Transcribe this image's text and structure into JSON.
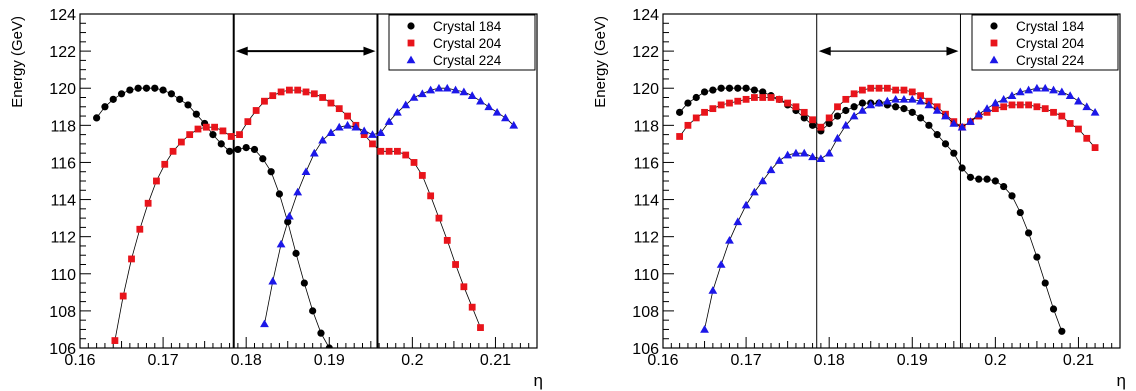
{
  "chart_data": [
    {
      "type": "scatter",
      "title": "",
      "xlabel": "η",
      "ylabel": "Energy (GeV)",
      "xlim": [
        0.16,
        0.215
      ],
      "ylim": [
        106,
        124
      ],
      "xticks": [
        0.16,
        0.17,
        0.18,
        0.19,
        0.2,
        0.21
      ],
      "xtick_labels": [
        "0.16",
        "0.17",
        "0.18",
        "0.19",
        "0.2",
        "0.21"
      ],
      "yticks": [
        106,
        108,
        110,
        112,
        114,
        116,
        118,
        120,
        122,
        124
      ],
      "ytick_labels": [
        "106",
        "108",
        "110",
        "112",
        "114",
        "116",
        "118",
        "120",
        "122",
        "124"
      ],
      "grid": false,
      "legend_position": "top-right",
      "vertical_lines": [
        0.1785,
        0.1958
      ],
      "arrow": {
        "from": 0.1785,
        "to": 0.1958,
        "y": 122
      },
      "series": [
        {
          "name": "Crystal 184",
          "marker": "circle",
          "color": "#000000",
          "x": [
            0.162,
            0.163,
            0.164,
            0.165,
            0.166,
            0.167,
            0.168,
            0.169,
            0.17,
            0.171,
            0.172,
            0.173,
            0.174,
            0.175,
            0.176,
            0.177,
            0.178,
            0.179,
            0.18,
            0.181,
            0.182,
            0.183,
            0.184,
            0.185,
            0.186,
            0.187,
            0.188,
            0.189,
            0.19
          ],
          "y": [
            118.4,
            119.0,
            119.4,
            119.7,
            119.9,
            120.0,
            120.0,
            120.0,
            119.9,
            119.7,
            119.4,
            119.1,
            118.6,
            118.1,
            117.5,
            117.0,
            116.6,
            116.7,
            116.8,
            116.7,
            116.2,
            115.5,
            114.3,
            112.8,
            111.1,
            109.5,
            108.0,
            106.8,
            106.0
          ]
        },
        {
          "name": "Crystal 204",
          "marker": "square",
          "color": "#e8141b",
          "x": [
            0.1642,
            0.1652,
            0.1662,
            0.1672,
            0.1682,
            0.1692,
            0.1702,
            0.1712,
            0.1722,
            0.1732,
            0.1742,
            0.1752,
            0.1762,
            0.1772,
            0.1782,
            0.1792,
            0.1802,
            0.1812,
            0.1822,
            0.1832,
            0.1842,
            0.1852,
            0.1862,
            0.1872,
            0.1882,
            0.1892,
            0.1902,
            0.1912,
            0.1922,
            0.1932,
            0.1942,
            0.1952,
            0.1962,
            0.1972,
            0.1982,
            0.1992,
            0.2002,
            0.2012,
            0.2022,
            0.2032,
            0.2042,
            0.2052,
            0.2062,
            0.2072,
            0.2082
          ],
          "y": [
            106.4,
            108.8,
            110.8,
            112.4,
            113.8,
            115.0,
            115.9,
            116.6,
            117.1,
            117.5,
            117.8,
            117.9,
            117.9,
            117.7,
            117.4,
            117.5,
            118.2,
            118.8,
            119.3,
            119.6,
            119.8,
            119.9,
            119.9,
            119.8,
            119.7,
            119.5,
            119.2,
            118.9,
            118.5,
            118.0,
            117.5,
            117.0,
            116.6,
            116.6,
            116.6,
            116.4,
            116.0,
            115.3,
            114.2,
            113.0,
            111.8,
            110.5,
            109.3,
            108.2,
            107.1
          ]
        },
        {
          "name": "Crystal 224",
          "marker": "triangle",
          "color": "#1c17e8",
          "x": [
            0.1822,
            0.1832,
            0.1842,
            0.1852,
            0.1862,
            0.1872,
            0.1882,
            0.1892,
            0.1902,
            0.1912,
            0.1922,
            0.1932,
            0.1942,
            0.1952,
            0.1962,
            0.1972,
            0.1982,
            0.1992,
            0.2002,
            0.2012,
            0.2022,
            0.2032,
            0.2042,
            0.2052,
            0.2062,
            0.2072,
            0.2082,
            0.2092,
            0.2102,
            0.2112,
            0.2122
          ],
          "y": [
            107.3,
            109.6,
            111.6,
            113.1,
            114.4,
            115.5,
            116.5,
            117.2,
            117.6,
            117.9,
            118.0,
            117.9,
            117.7,
            117.5,
            117.6,
            118.2,
            118.7,
            119.1,
            119.5,
            119.7,
            119.9,
            120.0,
            120.0,
            119.9,
            119.8,
            119.6,
            119.3,
            119.0,
            118.7,
            118.4,
            118.0
          ]
        }
      ]
    },
    {
      "type": "scatter",
      "title": "",
      "xlabel": "η",
      "ylabel": "Energy (GeV)",
      "xlim": [
        0.16,
        0.215
      ],
      "ylim": [
        106,
        124
      ],
      "xticks": [
        0.16,
        0.17,
        0.18,
        0.19,
        0.2,
        0.21
      ],
      "xtick_labels": [
        "0.16",
        "0.17",
        "0.18",
        "0.19",
        "0.2",
        "0.21"
      ],
      "yticks": [
        106,
        108,
        110,
        112,
        114,
        116,
        118,
        120,
        122,
        124
      ],
      "ytick_labels": [
        "106",
        "108",
        "110",
        "112",
        "114",
        "116",
        "118",
        "120",
        "122",
        "124"
      ],
      "grid": false,
      "legend_position": "top-right",
      "vertical_lines": [
        0.1785,
        0.1958
      ],
      "arrow": {
        "from": 0.1785,
        "to": 0.1958,
        "y": 122
      },
      "series": [
        {
          "name": "Crystal 184",
          "marker": "circle",
          "color": "#000000",
          "x": [
            0.162,
            0.163,
            0.164,
            0.165,
            0.166,
            0.167,
            0.168,
            0.169,
            0.17,
            0.171,
            0.172,
            0.173,
            0.174,
            0.175,
            0.176,
            0.177,
            0.178,
            0.179,
            0.18,
            0.181,
            0.182,
            0.183,
            0.184,
            0.185,
            0.186,
            0.187,
            0.188,
            0.189,
            0.19,
            0.191,
            0.192,
            0.193,
            0.194,
            0.195,
            0.196,
            0.197,
            0.198,
            0.199,
            0.2,
            0.201,
            0.202,
            0.203,
            0.204,
            0.205,
            0.206,
            0.207,
            0.208
          ],
          "y": [
            118.7,
            119.2,
            119.5,
            119.8,
            119.9,
            120.0,
            120.0,
            120.0,
            120.0,
            119.9,
            119.8,
            119.6,
            119.4,
            119.1,
            118.8,
            118.4,
            118.0,
            117.7,
            118.1,
            118.5,
            118.8,
            119.0,
            119.2,
            119.2,
            119.2,
            119.1,
            119.0,
            118.9,
            118.7,
            118.4,
            118.0,
            117.5,
            117.0,
            116.5,
            115.7,
            115.2,
            115.1,
            115.1,
            115.0,
            114.7,
            114.2,
            113.3,
            112.2,
            110.9,
            109.5,
            108.1,
            106.9
          ]
        },
        {
          "name": "Crystal 204",
          "marker": "square",
          "color": "#e8141b",
          "x": [
            0.162,
            0.163,
            0.164,
            0.165,
            0.166,
            0.167,
            0.168,
            0.169,
            0.17,
            0.171,
            0.172,
            0.173,
            0.174,
            0.175,
            0.176,
            0.177,
            0.178,
            0.179,
            0.18,
            0.181,
            0.182,
            0.183,
            0.184,
            0.185,
            0.186,
            0.187,
            0.188,
            0.189,
            0.19,
            0.191,
            0.192,
            0.193,
            0.194,
            0.195,
            0.196,
            0.197,
            0.198,
            0.199,
            0.2,
            0.201,
            0.202,
            0.203,
            0.204,
            0.205,
            0.206,
            0.207,
            0.208,
            0.209,
            0.21,
            0.211,
            0.212
          ],
          "y": [
            117.4,
            118.0,
            118.4,
            118.7,
            118.9,
            119.1,
            119.2,
            119.3,
            119.4,
            119.5,
            119.5,
            119.5,
            119.4,
            119.2,
            119.0,
            118.7,
            118.3,
            117.9,
            118.4,
            119.0,
            119.4,
            119.7,
            119.9,
            120.0,
            120.0,
            120.0,
            119.9,
            119.9,
            119.8,
            119.6,
            119.3,
            119.0,
            118.6,
            118.2,
            117.9,
            118.2,
            118.5,
            118.7,
            118.9,
            119.0,
            119.1,
            119.1,
            119.1,
            119.0,
            118.9,
            118.7,
            118.5,
            118.1,
            117.8,
            117.3,
            116.8
          ]
        },
        {
          "name": "Crystal 224",
          "marker": "triangle",
          "color": "#1c17e8",
          "x": [
            0.165,
            0.166,
            0.167,
            0.168,
            0.169,
            0.17,
            0.171,
            0.172,
            0.173,
            0.174,
            0.175,
            0.176,
            0.177,
            0.178,
            0.179,
            0.18,
            0.181,
            0.182,
            0.183,
            0.184,
            0.185,
            0.186,
            0.187,
            0.188,
            0.189,
            0.19,
            0.191,
            0.192,
            0.193,
            0.194,
            0.195,
            0.196,
            0.197,
            0.198,
            0.199,
            0.2,
            0.201,
            0.202,
            0.203,
            0.204,
            0.205,
            0.206,
            0.207,
            0.208,
            0.209,
            0.21,
            0.211,
            0.212
          ],
          "y": [
            107.0,
            109.1,
            110.5,
            111.8,
            112.8,
            113.7,
            114.4,
            115.0,
            115.6,
            116.1,
            116.4,
            116.5,
            116.5,
            116.3,
            116.2,
            116.5,
            117.3,
            118.0,
            118.5,
            118.8,
            119.1,
            119.2,
            119.3,
            119.4,
            119.4,
            119.4,
            119.3,
            119.1,
            118.8,
            118.5,
            118.1,
            117.9,
            118.2,
            118.6,
            118.9,
            119.2,
            119.4,
            119.6,
            119.8,
            119.9,
            120.0,
            120.0,
            119.9,
            119.8,
            119.6,
            119.3,
            119.0,
            118.7
          ]
        }
      ]
    }
  ]
}
